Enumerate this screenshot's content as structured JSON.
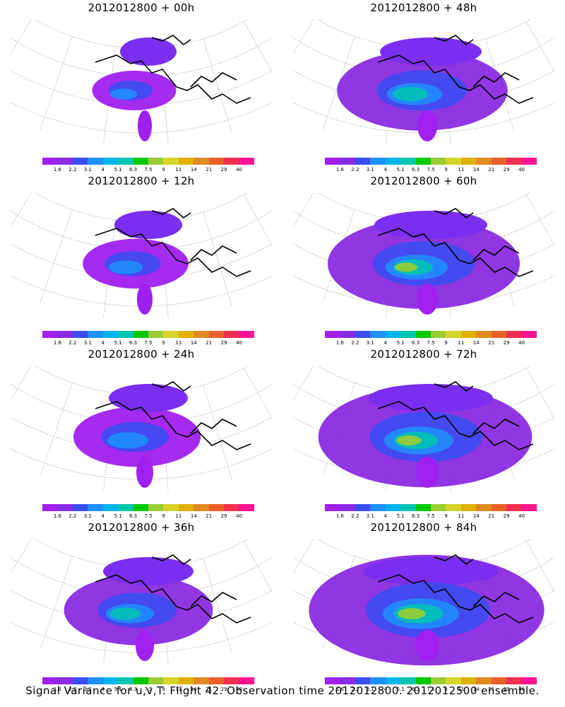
{
  "panels": [
    {
      "title": "2012012800  + 00h",
      "level": 0
    },
    {
      "title": "2012012800  + 48h",
      "level": 4
    },
    {
      "title": "2012012800  + 12h",
      "level": 1
    },
    {
      "title": "2012012800  + 60h",
      "level": 5
    },
    {
      "title": "2012012800  + 24h",
      "level": 2
    },
    {
      "title": "2012012800  + 72h",
      "level": 6
    },
    {
      "title": "2012012800  + 36h",
      "level": 3
    },
    {
      "title": "2012012800  + 84h",
      "level": 7
    }
  ],
  "colorbar": {
    "colors": [
      "#a020f0",
      "#8a2be2",
      "#3b4cf0",
      "#1e90ff",
      "#00b2ee",
      "#00c5b0",
      "#00c800",
      "#9acd32",
      "#d4d42a",
      "#e0b000",
      "#e08a20",
      "#e8602a",
      "#f03050",
      "#ff1493"
    ],
    "labels": [
      "1.6",
      "2.2",
      "3.1",
      "4",
      "5.1",
      "6.3",
      "7.5",
      "9",
      "11",
      "14",
      "21",
      "29",
      "40"
    ]
  },
  "caption": "Signal Variance for u,v,T. Flight 42. Observation time 2012012800. 2012012500 ensemble."
}
